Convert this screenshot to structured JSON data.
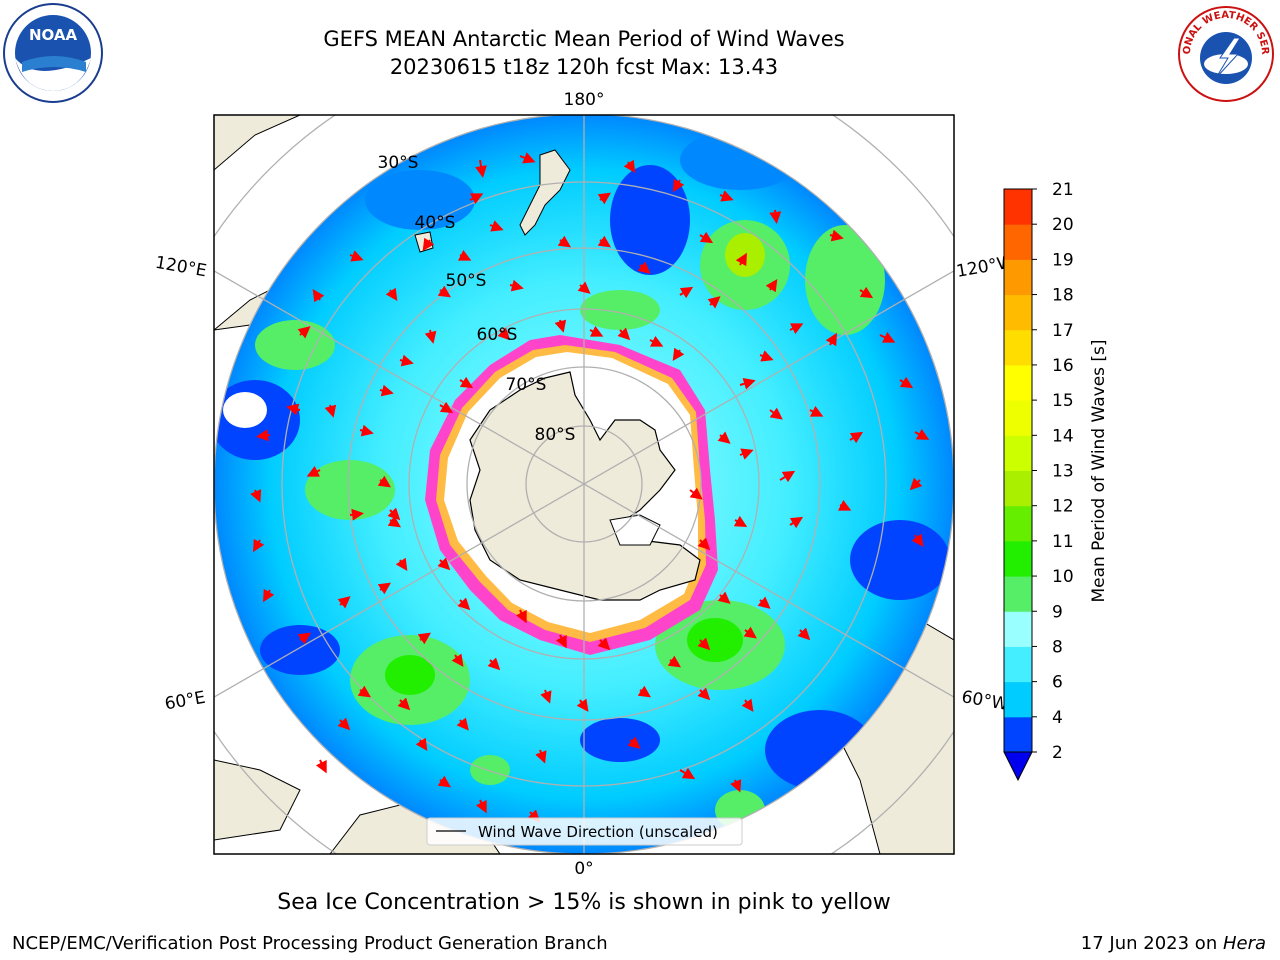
{
  "title": {
    "line1": "GEFS MEAN Antarctic Mean Period of Wind Waves",
    "line2": "20230615 t18z 120h fcst   Max: 13.43"
  },
  "map": {
    "projection": "south-polar-stereographic",
    "lon_labels": {
      "top": "180°",
      "bottom": "0°",
      "left_upper": "120°E",
      "left_lower": "60°E",
      "right_upper": "120°W",
      "right_lower": "60°W"
    },
    "lat_labels": [
      "30°S",
      "40°S",
      "50°S",
      "60°S",
      "70°S",
      "80°S"
    ],
    "legend": "Wind Wave Direction (unscaled)",
    "colors": {
      "land": "#efebda",
      "sea_ice": "#ffffff",
      "arrow": "#ff0000",
      "grid": "#b0b0b0"
    }
  },
  "colorbar": {
    "label": "Mean Period of Wind Waves [s]",
    "ticks": [
      "2",
      "4",
      "6",
      "8",
      "9",
      "10",
      "11",
      "12",
      "13",
      "14",
      "15",
      "16",
      "17",
      "18",
      "19",
      "20",
      "21"
    ],
    "colors": [
      "#0044ff",
      "#00ccff",
      "#44eeff",
      "#99ffff",
      "#55ee66",
      "#22ee00",
      "#66ee00",
      "#aaee00",
      "#ccff00",
      "#eeff00",
      "#ffff00",
      "#ffdd00",
      "#ffbb00",
      "#ff9900",
      "#ff6600",
      "#ff3300",
      "#ff0000"
    ],
    "extend_min_color": "#0000ee"
  },
  "caption": "Sea Ice Concentration > 15% is shown in pink to yellow",
  "footer": {
    "left": "NCEP/EMC/Verification Post Processing Product Generation Branch",
    "right_prefix": "17 Jun 2023 on ",
    "right_host": "Hera"
  },
  "logos": {
    "noaa": "NOAA",
    "nws": "NATIONAL WEATHER SERVICE"
  }
}
